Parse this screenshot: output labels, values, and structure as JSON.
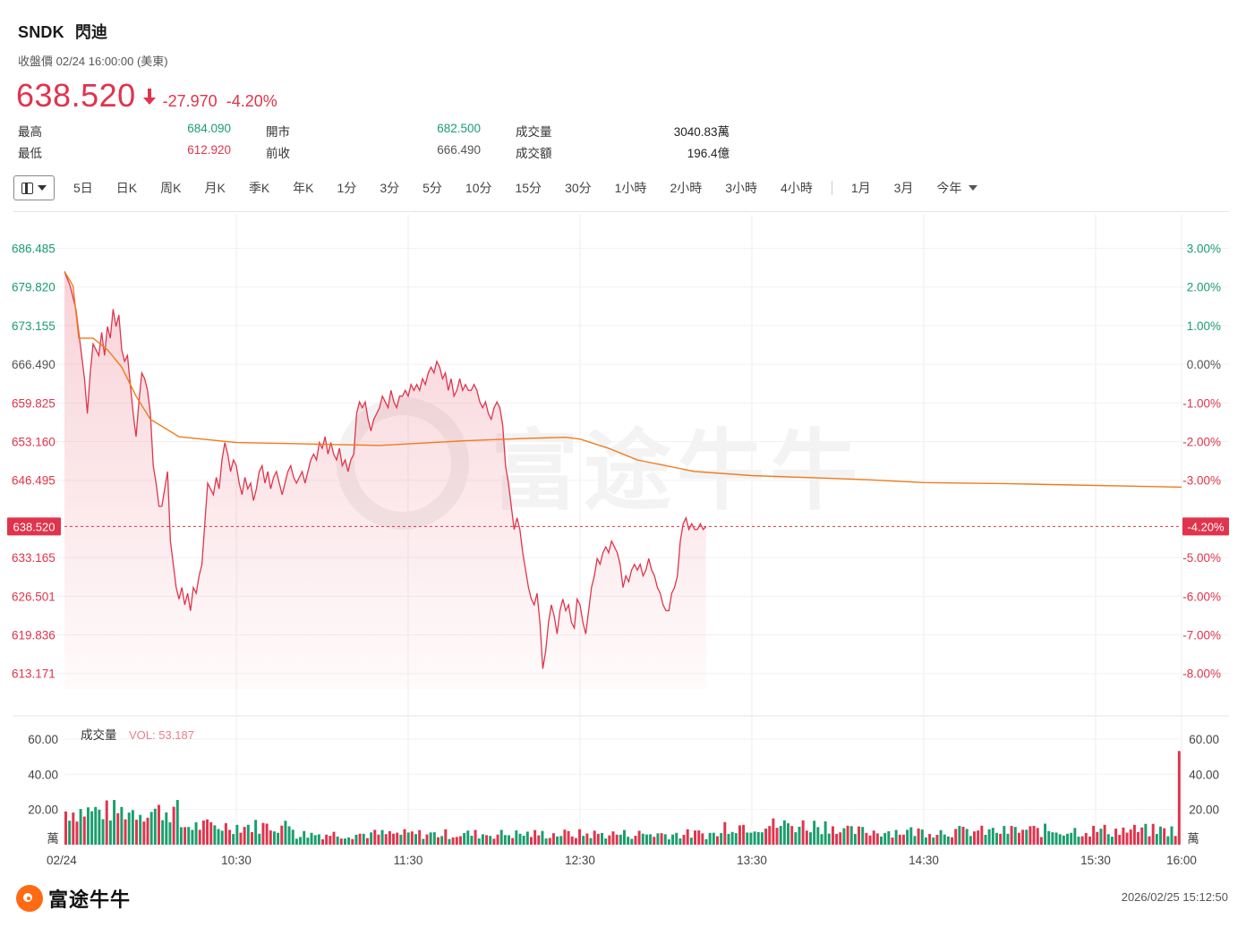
{
  "header": {
    "symbol": "SNDK",
    "name": "閃迪",
    "subtitle": "收盤價 02/24 16:00:00 (美東)",
    "price": "638.520",
    "change": "-27.970",
    "change_pct": "-4.20%"
  },
  "stats": {
    "high_label": "最高",
    "high": "684.090",
    "low_label": "最低",
    "low": "612.920",
    "open_label": "開市",
    "open": "682.500",
    "prev_label": "前收",
    "prev": "666.490",
    "vol_label": "成交量",
    "vol": "3040.83萬",
    "amt_label": "成交額",
    "amt": "196.4億"
  },
  "toolbar": {
    "items": [
      "5日",
      "日K",
      "周K",
      "月K",
      "季K",
      "年K",
      "1分",
      "3分",
      "5分",
      "10分",
      "15分",
      "30分",
      "1小時",
      "2小時",
      "3小時",
      "4小時"
    ],
    "items2": [
      "1月",
      "3月"
    ],
    "period": "今年"
  },
  "footer": {
    "brand": "富途牛牛",
    "timestamp": "2026/02/25 15:12:50"
  },
  "watermark": "富途牛牛",
  "colors": {
    "up": "#e0344c",
    "down": "#1a9e6e",
    "avg_line": "#f07a1a",
    "price_line": "#e0344c"
  },
  "chart_data": {
    "type": "line",
    "prev_close": 666.49,
    "last_price": 638.52,
    "last_price_label": "638.520",
    "last_pct_label": "-4.20%",
    "y_ticks": [
      "686.485",
      "679.820",
      "673.155",
      "666.490",
      "659.825",
      "653.160",
      "646.495",
      "633.165",
      "626.501",
      "619.836",
      "613.171"
    ],
    "y_tick_values": [
      686.485,
      679.82,
      673.155,
      666.49,
      659.825,
      653.16,
      646.495,
      633.165,
      626.501,
      619.836,
      613.171
    ],
    "pct_ticks": [
      "3.00%",
      "2.00%",
      "1.00%",
      "0.00%",
      "-1.00%",
      "-2.00%",
      "-3.00%",
      "-5.00%",
      "-6.00%",
      "-7.00%",
      "-8.00%"
    ],
    "pct_tick_values": [
      686.485,
      679.82,
      673.155,
      666.49,
      659.825,
      653.16,
      646.495,
      633.165,
      626.501,
      619.836,
      613.171
    ],
    "x_labels": [
      "02/24",
      "10:30",
      "11:30",
      "12:30",
      "13:30",
      "14:30",
      "15:30",
      "16:00"
    ],
    "x_label_minutes": [
      0,
      60,
      120,
      180,
      240,
      300,
      360,
      390
    ],
    "price_series": [
      [
        0,
        682.5
      ],
      [
        2,
        680
      ],
      [
        4,
        676
      ],
      [
        6,
        668
      ],
      [
        7,
        664
      ],
      [
        8,
        658
      ],
      [
        9,
        665
      ],
      [
        10,
        670
      ],
      [
        12,
        668
      ],
      [
        13,
        672
      ],
      [
        14,
        668
      ],
      [
        15,
        673
      ],
      [
        16,
        671
      ],
      [
        17,
        676
      ],
      [
        18,
        673
      ],
      [
        19,
        675
      ],
      [
        20,
        669
      ],
      [
        21,
        667
      ],
      [
        22,
        668
      ],
      [
        23,
        663
      ],
      [
        24,
        658
      ],
      [
        25,
        654
      ],
      [
        26,
        660
      ],
      [
        27,
        665
      ],
      [
        28,
        664
      ],
      [
        29,
        662
      ],
      [
        30,
        658
      ],
      [
        31,
        649
      ],
      [
        32,
        646
      ],
      [
        33,
        642
      ],
      [
        34,
        642
      ],
      [
        35,
        645
      ],
      [
        36,
        648
      ],
      [
        37,
        636
      ],
      [
        38,
        632
      ],
      [
        39,
        628
      ],
      [
        40,
        626
      ],
      [
        41,
        628
      ],
      [
        42,
        625
      ],
      [
        43,
        627
      ],
      [
        44,
        624
      ],
      [
        45,
        628
      ],
      [
        46,
        627
      ],
      [
        47,
        630
      ],
      [
        48,
        632
      ],
      [
        49,
        639
      ],
      [
        50,
        646
      ],
      [
        51,
        645
      ],
      [
        52,
        644
      ],
      [
        53,
        647
      ],
      [
        54,
        645
      ],
      [
        55,
        650
      ],
      [
        56,
        653
      ],
      [
        57,
        651
      ],
      [
        58,
        648
      ],
      [
        59,
        650
      ],
      [
        60,
        649
      ],
      [
        61,
        646
      ],
      [
        62,
        644
      ],
      [
        63,
        647
      ],
      [
        64,
        645
      ],
      [
        65,
        646
      ],
      [
        66,
        643
      ],
      [
        67,
        645
      ],
      [
        68,
        648
      ],
      [
        69,
        649
      ],
      [
        70,
        646
      ],
      [
        71,
        648
      ],
      [
        72,
        645
      ],
      [
        73,
        647
      ],
      [
        74,
        648
      ],
      [
        75,
        646
      ],
      [
        76,
        644
      ],
      [
        77,
        646
      ],
      [
        78,
        648
      ],
      [
        79,
        649
      ],
      [
        80,
        647
      ],
      [
        81,
        646
      ],
      [
        82,
        647
      ],
      [
        83,
        648
      ],
      [
        84,
        646
      ],
      [
        85,
        648
      ],
      [
        86,
        650
      ],
      [
        87,
        651
      ],
      [
        88,
        650
      ],
      [
        89,
        653
      ],
      [
        90,
        652
      ],
      [
        91,
        654
      ],
      [
        92,
        651
      ],
      [
        93,
        653
      ],
      [
        94,
        651
      ],
      [
        95,
        650
      ],
      [
        96,
        652
      ],
      [
        97,
        649
      ],
      [
        98,
        650
      ],
      [
        99,
        648
      ],
      [
        100,
        650
      ],
      [
        101,
        651
      ],
      [
        102,
        658
      ],
      [
        103,
        660
      ],
      [
        104,
        659
      ],
      [
        105,
        660
      ],
      [
        106,
        657
      ],
      [
        107,
        655
      ],
      [
        108,
        657
      ],
      [
        109,
        658
      ],
      [
        110,
        659
      ],
      [
        111,
        661
      ],
      [
        112,
        660
      ],
      [
        113,
        659
      ],
      [
        114,
        662
      ],
      [
        115,
        660
      ],
      [
        116,
        659
      ],
      [
        117,
        661
      ],
      [
        118,
        661
      ],
      [
        119,
        662
      ],
      [
        120,
        661
      ],
      [
        121,
        663
      ],
      [
        122,
        662
      ],
      [
        123,
        663
      ],
      [
        124,
        662
      ],
      [
        125,
        664
      ],
      [
        126,
        663
      ],
      [
        127,
        665
      ],
      [
        128,
        666
      ],
      [
        129,
        665
      ],
      [
        130,
        667
      ],
      [
        131,
        666
      ],
      [
        132,
        664
      ],
      [
        133,
        665
      ],
      [
        134,
        662
      ],
      [
        135,
        664
      ],
      [
        136,
        661
      ],
      [
        137,
        662
      ],
      [
        138,
        664
      ],
      [
        139,
        662
      ],
      [
        140,
        663
      ],
      [
        141,
        662
      ],
      [
        142,
        662
      ],
      [
        143,
        663
      ],
      [
        144,
        662
      ],
      [
        145,
        660
      ],
      [
        146,
        659
      ],
      [
        147,
        660
      ],
      [
        148,
        658
      ],
      [
        149,
        657
      ],
      [
        150,
        659
      ],
      [
        151,
        660
      ],
      [
        152,
        659
      ],
      [
        153,
        656
      ],
      [
        154,
        649
      ],
      [
        155,
        646
      ],
      [
        156,
        642
      ],
      [
        157,
        638
      ],
      [
        158,
        640
      ],
      [
        159,
        638
      ],
      [
        160,
        634
      ],
      [
        161,
        631
      ],
      [
        162,
        628
      ],
      [
        163,
        626
      ],
      [
        164,
        625
      ],
      [
        165,
        627
      ],
      [
        166,
        622
      ],
      [
        167,
        614
      ],
      [
        168,
        617
      ],
      [
        169,
        622
      ],
      [
        170,
        625
      ],
      [
        171,
        623
      ],
      [
        172,
        620
      ],
      [
        173,
        624
      ],
      [
        174,
        626
      ],
      [
        175,
        624
      ],
      [
        176,
        625
      ],
      [
        177,
        622
      ],
      [
        178,
        621
      ],
      [
        179,
        626
      ],
      [
        180,
        625
      ],
      [
        181,
        622
      ],
      [
        182,
        620
      ],
      [
        183,
        624
      ],
      [
        184,
        628
      ],
      [
        185,
        630
      ],
      [
        186,
        633
      ],
      [
        187,
        632
      ],
      [
        188,
        634
      ],
      [
        189,
        635
      ],
      [
        190,
        634
      ],
      [
        191,
        636
      ],
      [
        192,
        635
      ],
      [
        193,
        634
      ],
      [
        194,
        632
      ],
      [
        195,
        628
      ],
      [
        196,
        630
      ],
      [
        197,
        629
      ],
      [
        198,
        631
      ],
      [
        199,
        632
      ],
      [
        200,
        631
      ],
      [
        201,
        632
      ],
      [
        202,
        630
      ],
      [
        203,
        631
      ],
      [
        204,
        633
      ],
      [
        205,
        631
      ],
      [
        206,
        630
      ],
      [
        207,
        628
      ],
      [
        208,
        627
      ],
      [
        209,
        625
      ],
      [
        210,
        624
      ],
      [
        211,
        624
      ],
      [
        212,
        627
      ],
      [
        213,
        628
      ],
      [
        214,
        630
      ],
      [
        215,
        636
      ],
      [
        216,
        639
      ],
      [
        217,
        640
      ],
      [
        218,
        638
      ],
      [
        219,
        639
      ],
      [
        220,
        638
      ],
      [
        221,
        638
      ],
      [
        222,
        639
      ],
      [
        223,
        638
      ],
      [
        224,
        638.52
      ]
    ],
    "avg_series": [
      [
        0,
        682.5
      ],
      [
        3,
        680
      ],
      [
        5,
        671
      ],
      [
        10,
        671
      ],
      [
        15,
        669
      ],
      [
        20,
        666
      ],
      [
        25,
        661
      ],
      [
        30,
        657
      ],
      [
        40,
        654
      ],
      [
        60,
        653
      ],
      [
        80,
        652.8
      ],
      [
        110,
        652.5
      ],
      [
        140,
        653.3
      ],
      [
        160,
        653.7
      ],
      [
        175,
        653.9
      ],
      [
        180,
        653.6
      ],
      [
        190,
        652
      ],
      [
        200,
        650
      ],
      [
        220,
        648
      ],
      [
        240,
        647.3
      ],
      [
        280,
        646.6
      ],
      [
        300,
        646.1
      ],
      [
        330,
        645.9
      ],
      [
        350,
        645.7
      ],
      [
        390,
        645.3
      ]
    ],
    "price_y_range": [
      610.5,
      689.5
    ],
    "volume": {
      "title": "成交量",
      "vol_label": "VOL: 53.187",
      "y_ticks": [
        "60.00",
        "40.00",
        "20.00"
      ],
      "y_tick_values": [
        60,
        40,
        20
      ],
      "unit": "萬",
      "y_range": [
        0,
        62
      ]
    }
  }
}
